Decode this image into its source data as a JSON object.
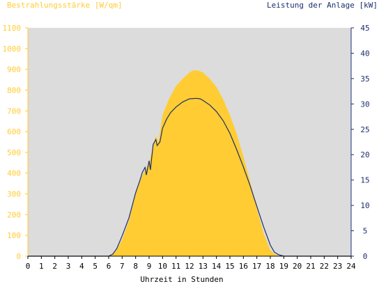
{
  "chart_data": {
    "type": "area",
    "title_left": "Bestrahlungsstärke [W/qm]",
    "title_right": "Leistung der Anlage [kW]",
    "xlabel": "Uhrzeit in Stunden",
    "xlim": [
      0,
      24
    ],
    "x_ticks": [
      "0",
      "1",
      "2",
      "3",
      "4",
      "5",
      "6",
      "7",
      "8",
      "9",
      "10",
      "11",
      "12",
      "13",
      "14",
      "15",
      "16",
      "17",
      "18",
      "19",
      "20",
      "21",
      "22",
      "23",
      "24"
    ],
    "y_left_lim": [
      0,
      1100
    ],
    "y_left_ticks": [
      "0",
      "100",
      "200",
      "300",
      "400",
      "500",
      "600",
      "700",
      "800",
      "900",
      "1000",
      "1100"
    ],
    "y_right_lim": [
      0,
      45
    ],
    "y_right_ticks": [
      "0",
      "5",
      "10",
      "15",
      "20",
      "25",
      "30",
      "35",
      "40",
      "45"
    ],
    "grid": false,
    "colors": {
      "plot_bg": "#dcdcdc",
      "irradiance": "#ffcc33",
      "power": "#1a2e6e",
      "left_axis_text": "#ffcc33",
      "right_axis_text": "#1a2e6e",
      "x_axis_text": "#000000"
    },
    "series": [
      {
        "name": "Bestrahlungsstärke",
        "axis": "left",
        "style": "area",
        "x": [
          0,
          6.0,
          6.2,
          6.5,
          7.0,
          7.5,
          8.0,
          8.5,
          9.0,
          9.3,
          9.5,
          9.7,
          10.0,
          10.5,
          11.0,
          11.5,
          12.0,
          12.3,
          12.6,
          13.0,
          13.5,
          14.0,
          14.5,
          15.0,
          15.5,
          16.0,
          16.5,
          17.0,
          17.5,
          18.0,
          18.3,
          18.6,
          19.0,
          24
        ],
        "values": [
          0,
          0,
          5,
          20,
          80,
          170,
          300,
          390,
          450,
          530,
          580,
          550,
          680,
          760,
          820,
          855,
          885,
          895,
          895,
          885,
          855,
          815,
          755,
          680,
          590,
          480,
          360,
          230,
          110,
          30,
          10,
          3,
          0,
          0
        ]
      },
      {
        "name": "Leistung der Anlage",
        "axis": "right",
        "style": "line",
        "x": [
          0,
          6.0,
          6.3,
          6.6,
          7.0,
          7.5,
          8.0,
          8.3,
          8.5,
          8.7,
          8.8,
          9.0,
          9.1,
          9.3,
          9.5,
          9.6,
          9.8,
          10.0,
          10.3,
          10.6,
          11.0,
          11.5,
          12.0,
          12.5,
          12.8,
          13.0,
          13.5,
          14.0,
          14.5,
          15.0,
          15.5,
          16.0,
          16.5,
          17.0,
          17.5,
          18.0,
          18.3,
          18.6,
          19.0,
          24
        ],
        "values": [
          0,
          0,
          0.4,
          1.5,
          4.0,
          7.5,
          12.5,
          14.8,
          16.5,
          17.5,
          16.0,
          18.8,
          17.0,
          22.0,
          23.0,
          21.8,
          22.5,
          25.2,
          27.0,
          28.3,
          29.4,
          30.4,
          31.0,
          31.1,
          31.0,
          30.7,
          29.8,
          28.5,
          26.7,
          24.2,
          21.0,
          17.6,
          13.9,
          9.8,
          5.8,
          2.2,
          0.8,
          0.3,
          0,
          0
        ]
      }
    ]
  }
}
